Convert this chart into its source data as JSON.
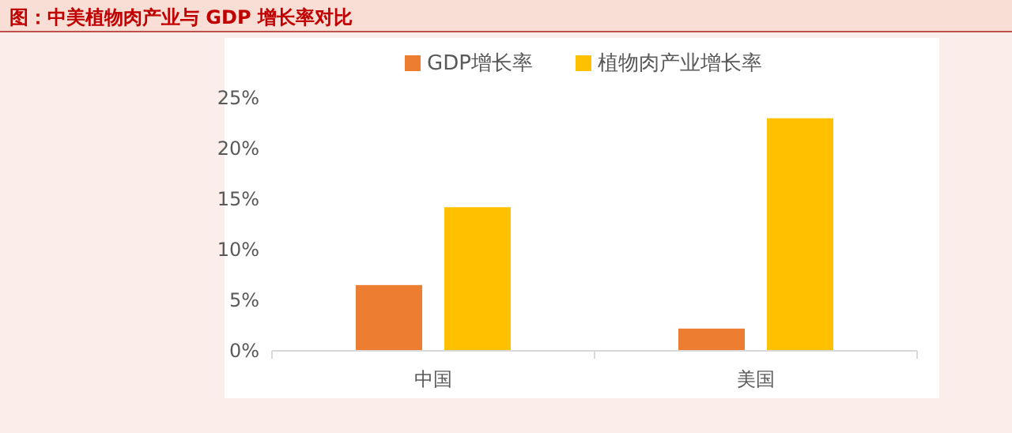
{
  "chart_data": {
    "type": "bar",
    "title": "图：中美植物肉产业与 GDP 增长率对比",
    "categories": [
      "中国",
      "美国"
    ],
    "series": [
      {
        "name": "GDP增长率",
        "color": "#ed7d31",
        "values": [
          6.5,
          2.2
        ]
      },
      {
        "name": "植物肉产业增长率",
        "color": "#ffc000",
        "values": [
          14.2,
          23.0
        ]
      }
    ],
    "ylim": [
      0,
      25
    ],
    "yticks": [
      {
        "value": 0,
        "label": "0%"
      },
      {
        "value": 5,
        "label": "5%"
      },
      {
        "value": 10,
        "label": "10%"
      },
      {
        "value": 15,
        "label": "15%"
      },
      {
        "value": 20,
        "label": "20%"
      },
      {
        "value": 25,
        "label": "25%"
      }
    ],
    "legend": "top",
    "grid": false
  }
}
